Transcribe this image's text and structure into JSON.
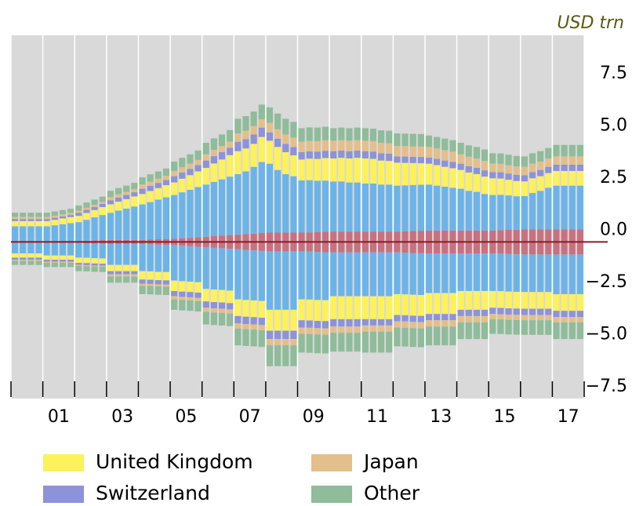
{
  "chart_data": {
    "type": "bar",
    "stacked": true,
    "unit": "USD trn",
    "xlim": [
      2000,
      2018
    ],
    "ylim": [
      -7.5,
      9.9
    ],
    "yticks": [
      {
        "value": -7.5,
        "label": "−7.5"
      },
      {
        "value": -5,
        "label": "−5.0"
      },
      {
        "value": -2.5,
        "label": "−2.5"
      },
      {
        "value": 0,
        "label": "0.0"
      },
      2.5,
      {
        "value": 5,
        "label": "5.0"
      },
      7.5
    ],
    "xticks": [
      {
        "value": 2001.5,
        "label": "01"
      },
      {
        "value": 2003.5,
        "label": "03"
      },
      {
        "value": 2005.5,
        "label": "05"
      },
      {
        "value": 2007.5,
        "label": "07"
      },
      {
        "value": 2009.5,
        "label": "09"
      },
      {
        "value": 2011.5,
        "label": "11"
      },
      {
        "value": 2013.5,
        "label": "13"
      },
      {
        "value": 2015.5,
        "label": "15"
      },
      {
        "value": 2017.5,
        "label": "17"
      }
    ],
    "xminorticks": [
      2000,
      2001,
      2002,
      2003,
      2004,
      2005,
      2006,
      2007,
      2008,
      2009,
      2010,
      2011,
      2012,
      2013,
      2014,
      2015,
      2016,
      2017,
      2018
    ],
    "x": [
      2000,
      2000.25,
      2000.5,
      2000.75,
      2001,
      2001.25,
      2001.5,
      2001.75,
      2002,
      2002.25,
      2002.5,
      2002.75,
      2003,
      2003.25,
      2003.5,
      2003.75,
      2004,
      2004.25,
      2004.5,
      2004.75,
      2005,
      2005.25,
      2005.5,
      2005.75,
      2006,
      2006.25,
      2006.5,
      2006.75,
      2007,
      2007.25,
      2007.5,
      2007.75,
      2008,
      2008.25,
      2008.5,
      2008.75,
      2009,
      2009.25,
      2009.5,
      2009.75,
      2010,
      2010.25,
      2010.5,
      2010.75,
      2011,
      2011.25,
      2011.5,
      2011.75,
      2012,
      2012.25,
      2012.5,
      2012.75,
      2013,
      2013.25,
      2013.5,
      2013.75,
      2014,
      2014.25,
      2014.5,
      2014.75,
      2015,
      2015.25,
      2015.5,
      2015.75,
      2016,
      2016.25,
      2016.5,
      2016.75,
      2017,
      2017.25,
      2017.5,
      2017.75
    ],
    "series": [
      {
        "color": "#c9717f",
        "values": [
          0.05,
          0.05,
          0.05,
          0.05,
          0.05,
          0.05,
          0.05,
          0.05,
          0.05,
          0.06,
          0.08,
          0.09,
          0.1,
          0.1,
          0.1,
          0.1,
          0.1,
          0.11,
          0.13,
          0.14,
          0.15,
          0.18,
          0.2,
          0.23,
          0.25,
          0.28,
          0.3,
          0.33,
          0.35,
          0.38,
          0.4,
          0.43,
          0.45,
          0.45,
          0.45,
          0.45,
          0.45,
          0.46,
          0.48,
          0.49,
          0.5,
          0.5,
          0.5,
          0.5,
          0.5,
          0.5,
          0.5,
          0.5,
          0.5,
          0.51,
          0.53,
          0.54,
          0.55,
          0.55,
          0.55,
          0.55,
          0.55,
          0.55,
          0.55,
          0.55,
          0.55,
          0.56,
          0.58,
          0.59,
          0.6,
          0.6,
          0.6,
          0.6,
          0.6,
          0.6,
          0.6,
          0.6
        ],
        "values_below": [
          -0.05,
          -0.05,
          -0.05,
          -0.05,
          -0.05,
          -0.05,
          -0.05,
          -0.05,
          -0.05,
          -0.06,
          -0.08,
          -0.09,
          -0.1,
          -0.1,
          -0.1,
          -0.1,
          -0.1,
          -0.11,
          -0.13,
          -0.14,
          -0.15,
          -0.18,
          -0.2,
          -0.23,
          -0.25,
          -0.28,
          -0.3,
          -0.33,
          -0.35,
          -0.38,
          -0.4,
          -0.43,
          -0.45,
          -0.45,
          -0.45,
          -0.45,
          -0.45,
          -0.46,
          -0.48,
          -0.49,
          -0.5,
          -0.5,
          -0.5,
          -0.5,
          -0.5,
          -0.5,
          -0.5,
          -0.5,
          -0.5,
          -0.51,
          -0.53,
          -0.54,
          -0.55,
          -0.55,
          -0.55,
          -0.55,
          -0.55,
          -0.55,
          -0.55,
          -0.55,
          -0.55,
          -0.56,
          -0.58,
          -0.59,
          -0.6,
          -0.6,
          -0.6,
          -0.6,
          -0.6,
          -0.6,
          -0.6,
          -0.6
        ]
      },
      {
        "color": "#6cb4e8",
        "values": [
          0.7,
          0.7,
          0.7,
          0.7,
          0.7,
          0.75,
          0.8,
          0.85,
          0.9,
          1,
          1.1,
          1.2,
          1.3,
          1.4,
          1.5,
          1.6,
          1.7,
          1.8,
          1.9,
          2,
          2.1,
          2.2,
          2.3,
          2.4,
          2.5,
          2.6,
          2.7,
          2.8,
          2.9,
          3,
          3.2,
          3.4,
          3.3,
          3,
          2.8,
          2.7,
          2.5,
          2.5,
          2.45,
          2.45,
          2.4,
          2.4,
          2.35,
          2.35,
          2.3,
          2.3,
          2.25,
          2.25,
          2.2,
          2.2,
          2.2,
          2.2,
          2.2,
          2.15,
          2.1,
          2.05,
          2,
          1.9,
          1.85,
          1.75,
          1.7,
          1.7,
          1.65,
          1.6,
          1.6,
          1.75,
          1.85,
          2,
          2.1,
          2.1,
          2.1,
          2.1
        ],
        "values_below": [
          -0.5,
          -0.5,
          -0.5,
          -0.5,
          -0.6,
          -0.6,
          -0.6,
          -0.6,
          -0.7,
          -0.7,
          -0.7,
          -0.7,
          -1,
          -1,
          -1,
          -1,
          -1.3,
          -1.3,
          -1.3,
          -1.3,
          -1.7,
          -1.7,
          -1.7,
          -1.7,
          -2,
          -2,
          -2,
          -2,
          -2.4,
          -2.4,
          -2.4,
          -2.4,
          -2.8,
          -2.8,
          -2.8,
          -2.8,
          -2.3,
          -2.3,
          -2.3,
          -2.3,
          -2.1,
          -2.1,
          -2.1,
          -2.1,
          -2.1,
          -2.1,
          -2.1,
          -2.1,
          -2,
          -2,
          -2,
          -2,
          -1.9,
          -1.9,
          -1.9,
          -1.9,
          -1.8,
          -1.8,
          -1.8,
          -1.8,
          -1.8,
          -1.8,
          -1.8,
          -1.8,
          -1.8,
          -1.8,
          -1.8,
          -1.8,
          -1.9,
          -1.9,
          -1.9,
          -1.9
        ]
      },
      {
        "name": "United Kingdom",
        "color": "#fdf15c",
        "values": [
          0.25,
          0.25,
          0.25,
          0.25,
          0.25,
          0.26,
          0.28,
          0.29,
          0.3,
          0.33,
          0.35,
          0.38,
          0.4,
          0.43,
          0.45,
          0.48,
          0.5,
          0.53,
          0.55,
          0.58,
          0.6,
          0.65,
          0.7,
          0.75,
          0.8,
          0.88,
          0.95,
          1.03,
          1.1,
          1.1,
          1.1,
          1.2,
          1.1,
          1.1,
          1.05,
          1,
          1,
          1.03,
          1.05,
          1.08,
          1.1,
          1.13,
          1.15,
          1.18,
          1.2,
          1.18,
          1.15,
          1.13,
          1.1,
          1.08,
          1.05,
          1.03,
          1,
          0.98,
          0.95,
          0.93,
          0.9,
          0.88,
          0.85,
          0.83,
          0.8,
          0.78,
          0.75,
          0.73,
          0.7,
          0.7,
          0.7,
          0.7,
          0.7,
          0.7,
          0.7,
          0.7
        ],
        "values_below": [
          -0.2,
          -0.2,
          -0.2,
          -0.2,
          -0.2,
          -0.2,
          -0.2,
          -0.2,
          -0.25,
          -0.25,
          -0.25,
          -0.25,
          -0.3,
          -0.3,
          -0.3,
          -0.3,
          -0.4,
          -0.4,
          -0.4,
          -0.4,
          -0.5,
          -0.5,
          -0.5,
          -0.5,
          -0.6,
          -0.6,
          -0.6,
          -0.6,
          -0.8,
          -0.8,
          -0.8,
          -0.8,
          -1,
          -1,
          -1,
          -1,
          -1,
          -1,
          -1,
          -1,
          -1.1,
          -1.1,
          -1.1,
          -1.1,
          -1.1,
          -1.1,
          -1.1,
          -1.1,
          -1,
          -1,
          -1,
          -1,
          -1,
          -1,
          -1,
          -1,
          -0.9,
          -0.9,
          -0.9,
          -0.9,
          -0.8,
          -0.8,
          -0.8,
          -0.8,
          -0.8,
          -0.8,
          -0.8,
          -0.8,
          -0.8,
          -0.8,
          -0.8,
          -0.8
        ]
      },
      {
        "name": "Switzerland",
        "color": "#8c93d8",
        "values": [
          0.1,
          0.1,
          0.1,
          0.1,
          0.1,
          0.1,
          0.1,
          0.1,
          0.15,
          0.15,
          0.15,
          0.15,
          0.2,
          0.2,
          0.2,
          0.2,
          0.25,
          0.25,
          0.25,
          0.25,
          0.3,
          0.3,
          0.3,
          0.3,
          0.35,
          0.35,
          0.35,
          0.35,
          0.45,
          0.45,
          0.45,
          0.45,
          0.4,
          0.4,
          0.4,
          0.4,
          0.35,
          0.35,
          0.35,
          0.35,
          0.35,
          0.35,
          0.35,
          0.35,
          0.35,
          0.35,
          0.35,
          0.35,
          0.3,
          0.3,
          0.3,
          0.3,
          0.3,
          0.3,
          0.3,
          0.3,
          0.3,
          0.3,
          0.3,
          0.3,
          0.3,
          0.3,
          0.3,
          0.3,
          0.3,
          0.3,
          0.3,
          0.3,
          0.3,
          0.3,
          0.3,
          0.3
        ],
        "values_below": [
          -0.1,
          -0.1,
          -0.1,
          -0.1,
          -0.1,
          -0.1,
          -0.1,
          -0.1,
          -0.1,
          -0.1,
          -0.1,
          -0.1,
          -0.15,
          -0.15,
          -0.15,
          -0.15,
          -0.2,
          -0.2,
          -0.2,
          -0.2,
          -0.25,
          -0.25,
          -0.25,
          -0.25,
          -0.3,
          -0.3,
          -0.3,
          -0.3,
          -0.35,
          -0.35,
          -0.35,
          -0.35,
          -0.4,
          -0.4,
          -0.4,
          -0.4,
          -0.35,
          -0.35,
          -0.35,
          -0.35,
          -0.35,
          -0.35,
          -0.35,
          -0.35,
          -0.3,
          -0.3,
          -0.3,
          -0.3,
          -0.3,
          -0.3,
          -0.3,
          -0.3,
          -0.3,
          -0.3,
          -0.3,
          -0.3,
          -0.3,
          -0.3,
          -0.3,
          -0.3,
          -0.3,
          -0.3,
          -0.3,
          -0.3,
          -0.3,
          -0.3,
          -0.3,
          -0.3,
          -0.3,
          -0.3,
          -0.3,
          -0.3
        ]
      },
      {
        "name": "Japan",
        "color": "#e3bf8c",
        "values": [
          0.1,
          0.1,
          0.1,
          0.1,
          0.1,
          0.1,
          0.1,
          0.1,
          0.1,
          0.1,
          0.1,
          0.1,
          0.15,
          0.15,
          0.15,
          0.15,
          0.2,
          0.2,
          0.2,
          0.2,
          0.25,
          0.25,
          0.25,
          0.25,
          0.3,
          0.3,
          0.3,
          0.3,
          0.4,
          0.4,
          0.4,
          0.4,
          0.45,
          0.45,
          0.45,
          0.45,
          0.5,
          0.5,
          0.5,
          0.5,
          0.5,
          0.5,
          0.5,
          0.5,
          0.5,
          0.5,
          0.5,
          0.5,
          0.5,
          0.5,
          0.5,
          0.5,
          0.5,
          0.5,
          0.5,
          0.5,
          0.45,
          0.45,
          0.45,
          0.45,
          0.4,
          0.4,
          0.4,
          0.4,
          0.4,
          0.4,
          0.4,
          0.4,
          0.4,
          0.4,
          0.4,
          0.4
        ],
        "values_below": [
          -0.05,
          -0.05,
          -0.05,
          -0.05,
          -0.05,
          -0.05,
          -0.05,
          -0.05,
          -0.05,
          -0.05,
          -0.05,
          -0.05,
          -0.1,
          -0.1,
          -0.1,
          -0.1,
          -0.1,
          -0.1,
          -0.1,
          -0.1,
          -0.15,
          -0.15,
          -0.15,
          -0.15,
          -0.2,
          -0.2,
          -0.2,
          -0.2,
          -0.25,
          -0.25,
          -0.25,
          -0.25,
          -0.3,
          -0.3,
          -0.3,
          -0.3,
          -0.3,
          -0.3,
          -0.3,
          -0.3,
          -0.3,
          -0.3,
          -0.3,
          -0.3,
          -0.3,
          -0.3,
          -0.3,
          -0.3,
          -0.3,
          -0.3,
          -0.3,
          -0.3,
          -0.3,
          -0.3,
          -0.3,
          -0.3,
          -0.3,
          -0.3,
          -0.3,
          -0.3,
          -0.25,
          -0.25,
          -0.25,
          -0.25,
          -0.25,
          -0.25,
          -0.25,
          -0.25,
          -0.25,
          -0.25,
          -0.25,
          -0.25
        ]
      },
      {
        "name": "Other",
        "color": "#8fbc9a",
        "values": [
          0.2,
          0.2,
          0.2,
          0.2,
          0.2,
          0.2,
          0.2,
          0.2,
          0.25,
          0.25,
          0.25,
          0.25,
          0.3,
          0.3,
          0.3,
          0.3,
          0.35,
          0.35,
          0.35,
          0.35,
          0.45,
          0.45,
          0.45,
          0.45,
          0.55,
          0.55,
          0.55,
          0.55,
          0.7,
          0.7,
          0.7,
          0.7,
          0.75,
          0.75,
          0.75,
          0.75,
          0.65,
          0.65,
          0.65,
          0.65,
          0.6,
          0.6,
          0.6,
          0.6,
          0.6,
          0.6,
          0.6,
          0.6,
          0.6,
          0.6,
          0.6,
          0.6,
          0.55,
          0.55,
          0.55,
          0.55,
          0.55,
          0.55,
          0.55,
          0.55,
          0.5,
          0.5,
          0.5,
          0.5,
          0.5,
          0.5,
          0.5,
          0.5,
          0.55,
          0.55,
          0.55,
          0.55
        ],
        "values_below": [
          -0.2,
          -0.2,
          -0.2,
          -0.2,
          -0.2,
          -0.2,
          -0.2,
          -0.2,
          -0.25,
          -0.25,
          -0.25,
          -0.25,
          -0.3,
          -0.3,
          -0.3,
          -0.3,
          -0.4,
          -0.4,
          -0.4,
          -0.4,
          -0.5,
          -0.5,
          -0.5,
          -0.5,
          -0.6,
          -0.6,
          -0.6,
          -0.6,
          -0.8,
          -0.8,
          -0.8,
          -0.8,
          -1,
          -1,
          -1,
          -1,
          -0.9,
          -0.9,
          -0.9,
          -0.9,
          -0.9,
          -0.9,
          -0.9,
          -0.9,
          -1,
          -1,
          -1,
          -1,
          -0.9,
          -0.9,
          -0.9,
          -0.9,
          -0.9,
          -0.9,
          -0.9,
          -0.9,
          -0.8,
          -0.8,
          -0.8,
          -0.8,
          -0.7,
          -0.7,
          -0.7,
          -0.7,
          -0.7,
          -0.7,
          -0.7,
          -0.7,
          -0.8,
          -0.8,
          -0.8,
          -0.8
        ]
      }
    ]
  }
}
